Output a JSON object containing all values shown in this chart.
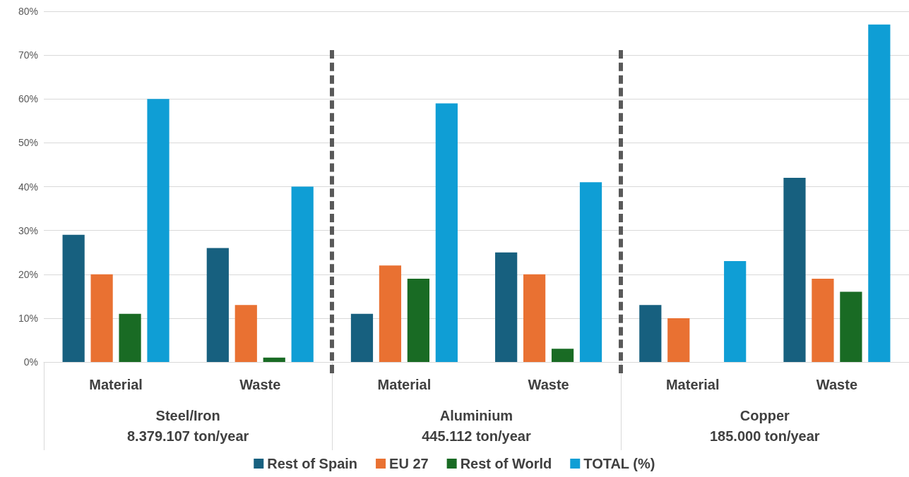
{
  "chart_data": {
    "type": "bar",
    "categories": [
      "Material",
      "Waste",
      "Material",
      "Waste",
      "Material",
      "Waste"
    ],
    "annotations": [
      "Steel/Iron\n8.379.107 ton/year",
      "Aluminium\n445.112 ton/year",
      "Copper\n185.000 ton/year"
    ],
    "series": [
      {
        "name": "Rest of Spain",
        "color": "#17607f",
        "values": [
          29,
          26,
          11,
          25,
          13,
          42
        ]
      },
      {
        "name": "EU 27",
        "color": "#e97132",
        "values": [
          20,
          13,
          22,
          20,
          10,
          19
        ]
      },
      {
        "name": "Rest of World",
        "color": "#196b24",
        "values": [
          11,
          1,
          19,
          3,
          0,
          16
        ]
      },
      {
        "name": "TOTAL (%)",
        "color": "#0f9ed5",
        "values": [
          60,
          40,
          59,
          41,
          23,
          77
        ]
      }
    ],
    "ylim": [
      0,
      80
    ],
    "yticks": [
      {
        "value": 0,
        "label": "0%"
      },
      {
        "value": 10,
        "label": "10%"
      },
      {
        "value": 20,
        "label": "20%"
      },
      {
        "value": 30,
        "label": "30%"
      },
      {
        "value": 40,
        "label": "40%"
      },
      {
        "value": 50,
        "label": "50%"
      },
      {
        "value": 60,
        "label": "60%"
      },
      {
        "value": 70,
        "label": "70%"
      },
      {
        "value": 80,
        "label": "80%"
      }
    ],
    "grid": "y",
    "legend": "bottom"
  }
}
